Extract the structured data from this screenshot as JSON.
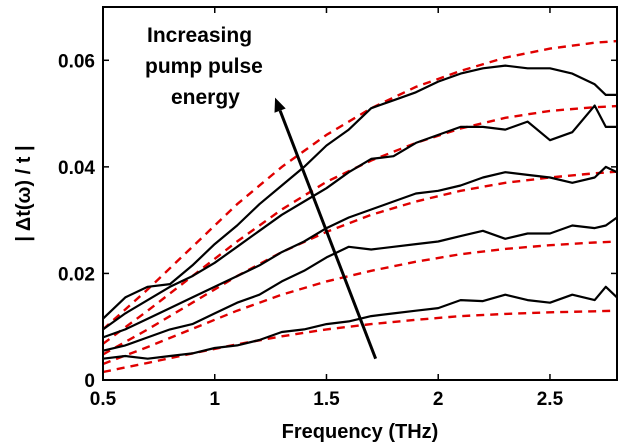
{
  "chart_data": {
    "type": "line",
    "xlabel": "Frequency (THz)",
    "ylabel": "| Δt(ω) / t |",
    "xlim": [
      0.5,
      2.8
    ],
    "ylim": [
      0,
      0.07
    ],
    "x_ticks": [
      0.5,
      1,
      1.5,
      2,
      2.5
    ],
    "x_tick_labels": [
      "0.5",
      "1",
      "1.5",
      "2",
      "2.5"
    ],
    "y_ticks": [
      0,
      0.02,
      0.04,
      0.06
    ],
    "y_tick_labels": [
      "0",
      "0.02",
      "0.04",
      "0.06"
    ],
    "grid": false,
    "legend": "none",
    "colors": {
      "data": "#000000",
      "fit": "#e00000",
      "axis": "#000000"
    },
    "annotation": {
      "lines": [
        "Increasing",
        "pump pulse",
        "energy"
      ],
      "arrow_from": [
        1.72,
        0.004
      ],
      "arrow_to": [
        1.27,
        0.053
      ]
    },
    "series_measured": [
      {
        "x": [
          0.5,
          0.6,
          0.7,
          0.8,
          0.9,
          1.0,
          1.1,
          1.2,
          1.3,
          1.4,
          1.5,
          1.6,
          1.7,
          1.8,
          1.9,
          2.0,
          2.1,
          2.2,
          2.3,
          2.4,
          2.5,
          2.6,
          2.7,
          2.75,
          2.8
        ],
        "y": [
          0.004,
          0.0045,
          0.004,
          0.0045,
          0.005,
          0.006,
          0.0065,
          0.0075,
          0.009,
          0.0095,
          0.0105,
          0.011,
          0.012,
          0.0125,
          0.013,
          0.0135,
          0.015,
          0.0148,
          0.016,
          0.015,
          0.0145,
          0.016,
          0.015,
          0.0175,
          0.0155
        ]
      },
      {
        "x": [
          0.5,
          0.6,
          0.7,
          0.8,
          0.9,
          1.0,
          1.1,
          1.2,
          1.3,
          1.4,
          1.5,
          1.6,
          1.7,
          1.8,
          1.9,
          2.0,
          2.1,
          2.2,
          2.3,
          2.4,
          2.5,
          2.6,
          2.7,
          2.75,
          2.8
        ],
        "y": [
          0.0055,
          0.0065,
          0.008,
          0.0095,
          0.0105,
          0.0125,
          0.0145,
          0.016,
          0.0185,
          0.0205,
          0.023,
          0.025,
          0.0245,
          0.025,
          0.0255,
          0.026,
          0.027,
          0.028,
          0.0265,
          0.0275,
          0.0275,
          0.029,
          0.0285,
          0.029,
          0.0305
        ]
      },
      {
        "x": [
          0.5,
          0.6,
          0.7,
          0.8,
          0.9,
          1.0,
          1.1,
          1.2,
          1.3,
          1.4,
          1.5,
          1.6,
          1.7,
          1.8,
          1.9,
          2.0,
          2.1,
          2.2,
          2.3,
          2.4,
          2.5,
          2.6,
          2.7,
          2.75,
          2.8
        ],
        "y": [
          0.008,
          0.0095,
          0.0115,
          0.0135,
          0.0155,
          0.0175,
          0.0195,
          0.0215,
          0.024,
          0.026,
          0.0285,
          0.0305,
          0.032,
          0.0335,
          0.035,
          0.0355,
          0.0365,
          0.038,
          0.039,
          0.0385,
          0.038,
          0.037,
          0.038,
          0.04,
          0.039
        ]
      },
      {
        "x": [
          0.5,
          0.6,
          0.7,
          0.8,
          0.9,
          1.0,
          1.1,
          1.2,
          1.3,
          1.4,
          1.5,
          1.6,
          1.7,
          1.8,
          1.9,
          2.0,
          2.1,
          2.2,
          2.3,
          2.4,
          2.5,
          2.6,
          2.7,
          2.75,
          2.8
        ],
        "y": [
          0.0095,
          0.0125,
          0.015,
          0.0175,
          0.0195,
          0.022,
          0.025,
          0.028,
          0.031,
          0.0335,
          0.036,
          0.039,
          0.0415,
          0.042,
          0.0445,
          0.046,
          0.0475,
          0.0475,
          0.047,
          0.0485,
          0.045,
          0.0465,
          0.0515,
          0.0475,
          0.0475
        ]
      },
      {
        "x": [
          0.5,
          0.6,
          0.7,
          0.8,
          0.9,
          1.0,
          1.1,
          1.2,
          1.3,
          1.4,
          1.5,
          1.6,
          1.7,
          1.8,
          1.9,
          2.0,
          2.1,
          2.2,
          2.3,
          2.4,
          2.5,
          2.6,
          2.7,
          2.75,
          2.8
        ],
        "y": [
          0.0115,
          0.0155,
          0.0175,
          0.018,
          0.0215,
          0.0255,
          0.029,
          0.033,
          0.0365,
          0.04,
          0.044,
          0.047,
          0.051,
          0.0525,
          0.054,
          0.056,
          0.0575,
          0.0585,
          0.059,
          0.0585,
          0.0585,
          0.0575,
          0.0555,
          0.0535,
          0.0535
        ]
      }
    ],
    "series_fit": [
      {
        "x": [
          0.5,
          0.7,
          0.9,
          1.1,
          1.3,
          1.5,
          1.7,
          1.9,
          2.1,
          2.3,
          2.5,
          2.7,
          2.8
        ],
        "y": [
          0.0015,
          0.0032,
          0.005,
          0.0067,
          0.0082,
          0.0095,
          0.0105,
          0.0113,
          0.012,
          0.0124,
          0.0127,
          0.0129,
          0.013
        ]
      },
      {
        "x": [
          0.5,
          0.7,
          0.9,
          1.1,
          1.3,
          1.5,
          1.7,
          1.9,
          2.1,
          2.3,
          2.5,
          2.7,
          2.8
        ],
        "y": [
          0.003,
          0.0062,
          0.0096,
          0.013,
          0.016,
          0.0185,
          0.0205,
          0.0222,
          0.0236,
          0.0246,
          0.0253,
          0.0258,
          0.026
        ]
      },
      {
        "x": [
          0.5,
          0.7,
          0.9,
          1.1,
          1.3,
          1.5,
          1.7,
          1.9,
          2.1,
          2.3,
          2.5,
          2.7,
          2.8
        ],
        "y": [
          0.0048,
          0.0095,
          0.0145,
          0.0195,
          0.024,
          0.0278,
          0.031,
          0.0335,
          0.0355,
          0.037,
          0.038,
          0.0388,
          0.0391
        ]
      },
      {
        "x": [
          0.5,
          0.7,
          0.9,
          1.1,
          1.3,
          1.5,
          1.7,
          1.9,
          2.1,
          2.3,
          2.5,
          2.7,
          2.8
        ],
        "y": [
          0.0068,
          0.013,
          0.0195,
          0.026,
          0.032,
          0.0372,
          0.0412,
          0.0445,
          0.0472,
          0.0492,
          0.0505,
          0.0512,
          0.0514
        ]
      },
      {
        "x": [
          0.5,
          0.7,
          0.9,
          1.1,
          1.3,
          1.5,
          1.7,
          1.9,
          2.1,
          2.3,
          2.5,
          2.7,
          2.8
        ],
        "y": [
          0.0095,
          0.017,
          0.025,
          0.033,
          0.04,
          0.046,
          0.051,
          0.055,
          0.058,
          0.0605,
          0.0622,
          0.0633,
          0.0636
        ]
      }
    ]
  }
}
